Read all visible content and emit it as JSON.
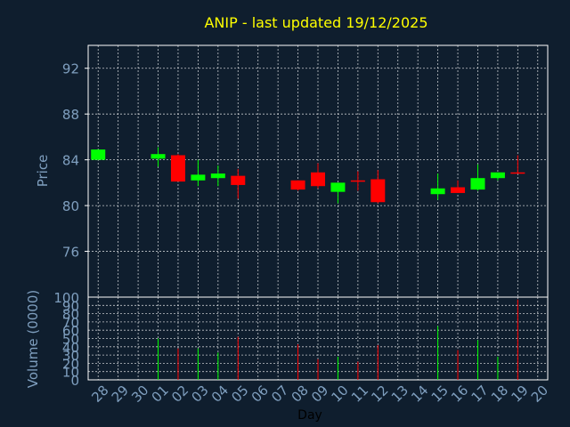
{
  "colors": {
    "background": "#0f1e2e",
    "title": "#ffff00",
    "label": "#7f9fbf",
    "frame": "#ffffff",
    "grid": "#ffffff",
    "up": "#00ff00",
    "down": "#ff0000"
  },
  "chart_data": [
    {
      "type": "candlestick",
      "title": "ANIP - last updated 19/12/2025",
      "ylabel": "Price",
      "ylim": [
        72,
        94
      ],
      "yticks": [
        76,
        80,
        84,
        88,
        92
      ],
      "grid": true,
      "candles": [
        {
          "day": "28",
          "open": 84.0,
          "close": 84.9,
          "high": 84.9,
          "low": 84.0
        },
        {
          "day": "01",
          "open": 84.1,
          "close": 84.5,
          "high": 85.1,
          "low": 83.4
        },
        {
          "day": "02",
          "open": 84.4,
          "close": 82.1,
          "high": 84.5,
          "low": 82.1
        },
        {
          "day": "03",
          "open": 82.2,
          "close": 82.7,
          "high": 84.0,
          "low": 81.7
        },
        {
          "day": "04",
          "open": 82.4,
          "close": 82.8,
          "high": 83.5,
          "low": 81.7
        },
        {
          "day": "05",
          "open": 82.6,
          "close": 81.8,
          "high": 83.2,
          "low": 80.6
        },
        {
          "day": "08",
          "open": 82.2,
          "close": 81.4,
          "high": 82.2,
          "low": 81.3
        },
        {
          "day": "09",
          "open": 82.9,
          "close": 81.7,
          "high": 83.7,
          "low": 81.5
        },
        {
          "day": "10",
          "open": 81.2,
          "close": 82.0,
          "high": 82.0,
          "low": 80.2
        },
        {
          "day": "11",
          "open": 82.2,
          "close": 82.1,
          "high": 83.0,
          "low": 81.3
        },
        {
          "day": "12",
          "open": 82.3,
          "close": 80.3,
          "high": 83.1,
          "low": 80.2
        },
        {
          "day": "15",
          "open": 81.0,
          "close": 81.5,
          "high": 82.8,
          "low": 80.5
        },
        {
          "day": "16",
          "open": 81.6,
          "close": 81.1,
          "high": 82.2,
          "low": 81.1
        },
        {
          "day": "17",
          "open": 81.4,
          "close": 82.4,
          "high": 83.6,
          "low": 81.3
        },
        {
          "day": "18",
          "open": 82.4,
          "close": 82.9,
          "high": 82.9,
          "low": 82.2
        },
        {
          "day": "19",
          "open": 82.9,
          "close": 82.8,
          "high": 84.4,
          "low": 82.8
        }
      ]
    },
    {
      "type": "bar",
      "xlabel": "Day",
      "ylabel": "Volume (0000)",
      "ylim": [
        0,
        100
      ],
      "yticks": [
        0,
        10,
        20,
        30,
        40,
        50,
        60,
        70,
        80,
        90,
        100
      ],
      "categories": [
        "28",
        "29",
        "30",
        "01",
        "02",
        "03",
        "04",
        "05",
        "06",
        "07",
        "08",
        "09",
        "10",
        "11",
        "12",
        "13",
        "14",
        "15",
        "16",
        "17",
        "18",
        "19",
        "20"
      ],
      "bars": [
        {
          "day": "01",
          "value": 50,
          "direction": "up"
        },
        {
          "day": "02",
          "value": 38,
          "direction": "down"
        },
        {
          "day": "03",
          "value": 38,
          "direction": "up"
        },
        {
          "day": "04",
          "value": 33,
          "direction": "up"
        },
        {
          "day": "05",
          "value": 52,
          "direction": "down"
        },
        {
          "day": "08",
          "value": 43,
          "direction": "down"
        },
        {
          "day": "09",
          "value": 25,
          "direction": "down"
        },
        {
          "day": "10",
          "value": 28,
          "direction": "up"
        },
        {
          "day": "11",
          "value": 22,
          "direction": "down"
        },
        {
          "day": "12",
          "value": 42,
          "direction": "down"
        },
        {
          "day": "15",
          "value": 65,
          "direction": "up"
        },
        {
          "day": "16",
          "value": 36,
          "direction": "down"
        },
        {
          "day": "17",
          "value": 48,
          "direction": "up"
        },
        {
          "day": "18",
          "value": 28,
          "direction": "up"
        },
        {
          "day": "19",
          "value": 97,
          "direction": "down"
        }
      ]
    }
  ]
}
